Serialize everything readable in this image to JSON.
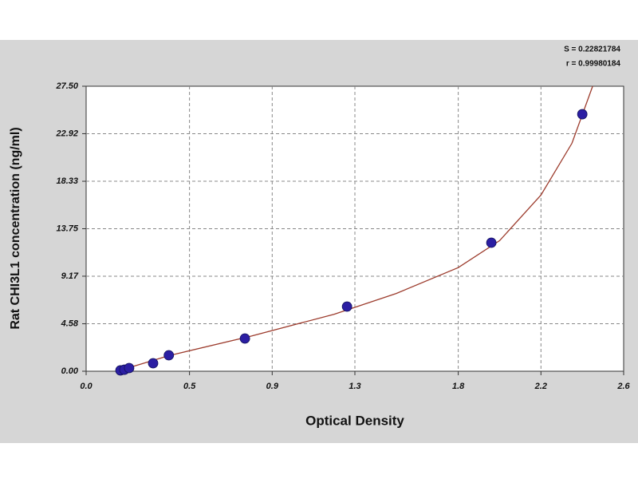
{
  "chart_data": {
    "type": "scatter",
    "annotations": [
      "S = 0.22821784",
      "r = 0.99980184"
    ],
    "x_label": "Optical Density",
    "y_label": "Rat CHI3L1 concentration (ng/ml)",
    "xlim": [
      0,
      2.6
    ],
    "xticks": [
      {
        "value": 0,
        "label": "0.0"
      },
      0.5,
      0.9,
      1.3,
      1.8,
      2.2,
      2.6
    ],
    "ylim": [
      0,
      27.5
    ],
    "yticks": [
      {
        "value": 0,
        "label": "0.00"
      },
      4.58,
      9.17,
      13.75,
      18.33,
      22.92,
      {
        "value": 27.5,
        "label": "27.50"
      }
    ],
    "grid": true,
    "series": [
      {
        "type": "line",
        "color": "#9c3b2c",
        "x": [
          0.15,
          0.4,
          0.8,
          1.2,
          1.5,
          1.8,
          2.0,
          2.2,
          2.35,
          2.45
        ],
        "values": [
          0,
          1.5,
          3.4,
          5.5,
          7.5,
          10.0,
          12.6,
          17.0,
          22.0,
          27.5
        ]
      },
      {
        "type": "scatter",
        "color": "#2b1ea3",
        "x": [
          0.166,
          0.185,
          0.208,
          0.324,
          0.4,
          0.768,
          1.262,
          1.96,
          2.4
        ],
        "values": [
          0.08,
          0.15,
          0.31,
          0.77,
          1.54,
          3.16,
          6.24,
          12.4,
          24.8
        ]
      }
    ]
  }
}
